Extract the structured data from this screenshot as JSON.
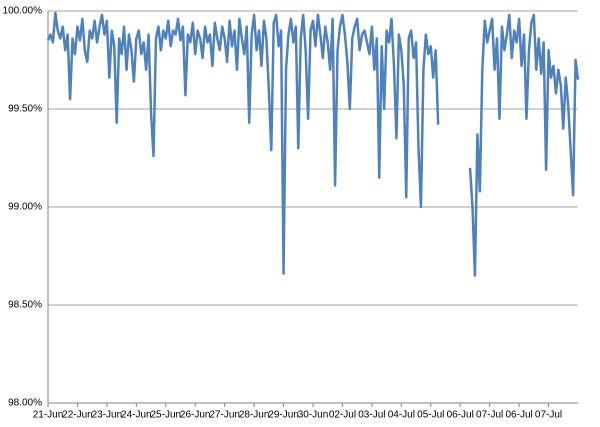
{
  "chart_data": {
    "type": "line",
    "categories": [
      "21-Jun",
      null,
      null,
      null,
      null,
      null,
      null,
      null,
      null,
      null,
      null,
      null,
      "22-Jun",
      null,
      null,
      null,
      null,
      null,
      null,
      null,
      null,
      null,
      null,
      null,
      "23-Jun",
      null,
      null,
      null,
      null,
      null,
      null,
      null,
      null,
      null,
      null,
      null,
      "24-Jun",
      null,
      null,
      null,
      null,
      null,
      null,
      null,
      null,
      null,
      null,
      null,
      "25-Jun",
      null,
      null,
      null,
      null,
      null,
      null,
      null,
      null,
      null,
      null,
      null,
      "26-Jun",
      null,
      null,
      null,
      null,
      null,
      null,
      null,
      null,
      null,
      null,
      null,
      "27-Jun",
      null,
      null,
      null,
      null,
      null,
      null,
      null,
      null,
      null,
      null,
      null,
      "28-Jun",
      null,
      null,
      null,
      null,
      null,
      null,
      null,
      null,
      null,
      null,
      null,
      "29-Jun",
      null,
      null,
      null,
      null,
      null,
      null,
      null,
      null,
      null,
      null,
      null,
      "30-Jun",
      null,
      null,
      null,
      null,
      null,
      null,
      null,
      null,
      null,
      null,
      null,
      "02-Jul",
      null,
      null,
      null,
      null,
      null,
      null,
      null,
      null,
      null,
      null,
      null,
      "03-Jul",
      null,
      null,
      null,
      null,
      null,
      null,
      null,
      null,
      null,
      null,
      null,
      "04-Jul",
      null,
      null,
      null,
      null,
      null,
      null,
      null,
      null,
      null,
      null,
      null,
      "05-Jul",
      null,
      null,
      null,
      null,
      null,
      null,
      null,
      null,
      null,
      null,
      null,
      "06-Jul",
      null,
      null,
      null,
      null,
      null,
      null,
      null,
      null,
      null,
      null,
      null,
      "07-Jul",
      null,
      null,
      null,
      null,
      null,
      null,
      null,
      null,
      null,
      null,
      null,
      "06-Jul",
      null,
      null,
      null,
      null,
      null,
      null,
      null,
      null,
      null,
      null,
      null,
      "07-Jul",
      null,
      null,
      null,
      null,
      null,
      null,
      null,
      null,
      null,
      null,
      null,
      null
    ],
    "series": [
      {
        "color": "#4f81bd",
        "values": [
          99.85,
          99.88,
          99.84,
          99.99,
          99.9,
          99.86,
          99.92,
          99.8,
          99.88,
          99.55,
          99.86,
          99.78,
          99.92,
          99.85,
          99.96,
          99.8,
          99.74,
          99.9,
          99.86,
          99.95,
          99.84,
          99.92,
          99.98,
          99.88,
          99.95,
          99.66,
          99.9,
          99.82,
          99.43,
          99.86,
          99.78,
          99.92,
          99.7,
          99.88,
          99.8,
          99.64,
          99.86,
          99.9,
          99.78,
          99.84,
          99.7,
          99.88,
          99.48,
          99.26,
          99.86,
          99.92,
          99.8,
          99.9,
          99.86,
          99.95,
          99.82,
          99.9,
          99.88,
          99.96,
          99.85,
          99.92,
          99.57,
          99.88,
          99.84,
          99.94,
          99.78,
          99.9,
          99.86,
          99.76,
          99.92,
          99.84,
          99.88,
          99.72,
          99.94,
          99.86,
          99.8,
          99.92,
          99.86,
          99.74,
          99.95,
          99.82,
          99.9,
          99.7,
          99.96,
          99.86,
          99.78,
          99.92,
          99.43,
          99.88,
          99.98,
          99.8,
          99.9,
          99.72,
          99.95,
          99.86,
          99.6,
          99.29,
          99.94,
          99.98,
          99.82,
          99.9,
          98.66,
          99.7,
          99.88,
          99.96,
          99.84,
          99.92,
          99.3,
          99.86,
          99.98,
          99.8,
          99.45,
          99.9,
          99.95,
          99.82,
          99.98,
          99.88,
          99.76,
          99.92,
          99.84,
          99.7,
          99.96,
          99.11,
          99.8,
          99.92,
          99.98,
          99.88,
          99.74,
          99.5,
          99.86,
          99.92,
          99.96,
          99.8,
          99.88,
          99.9,
          99.84,
          99.78,
          99.92,
          99.7,
          99.86,
          99.15,
          99.82,
          99.5,
          99.9,
          99.84,
          99.96,
          99.72,
          99.35,
          99.88,
          99.8,
          99.62,
          99.05,
          99.86,
          99.9,
          99.76,
          99.84,
          99.3,
          99.0,
          99.7,
          99.88,
          99.78,
          99.82,
          99.66,
          99.8,
          99.42,
          null,
          null,
          null,
          null,
          null,
          null,
          null,
          null,
          null,
          null,
          null,
          null,
          99.2,
          99.0,
          98.65,
          99.37,
          99.08,
          99.7,
          99.95,
          99.84,
          99.9,
          99.96,
          99.7,
          99.86,
          99.45,
          99.92,
          99.8,
          99.88,
          99.98,
          99.76,
          99.9,
          99.84,
          99.96,
          99.72,
          99.88,
          99.45,
          99.8,
          99.94,
          99.98,
          99.7,
          99.86,
          99.68,
          99.84,
          99.19,
          99.8,
          99.66,
          99.72,
          99.58,
          99.7,
          99.62,
          99.4,
          99.66,
          99.52,
          99.29,
          99.06,
          99.75,
          99.65
        ]
      }
    ],
    "ylim": [
      98,
      100
    ],
    "yticks": [
      {
        "value": 98,
        "label": "98.00%"
      },
      {
        "value": 98.5,
        "label": "98.50%"
      },
      {
        "value": 99,
        "label": "99.00%"
      },
      {
        "value": 99.5,
        "label": "99.50%"
      },
      {
        "value": 100,
        "label": "100.00%"
      }
    ],
    "grid": true
  }
}
